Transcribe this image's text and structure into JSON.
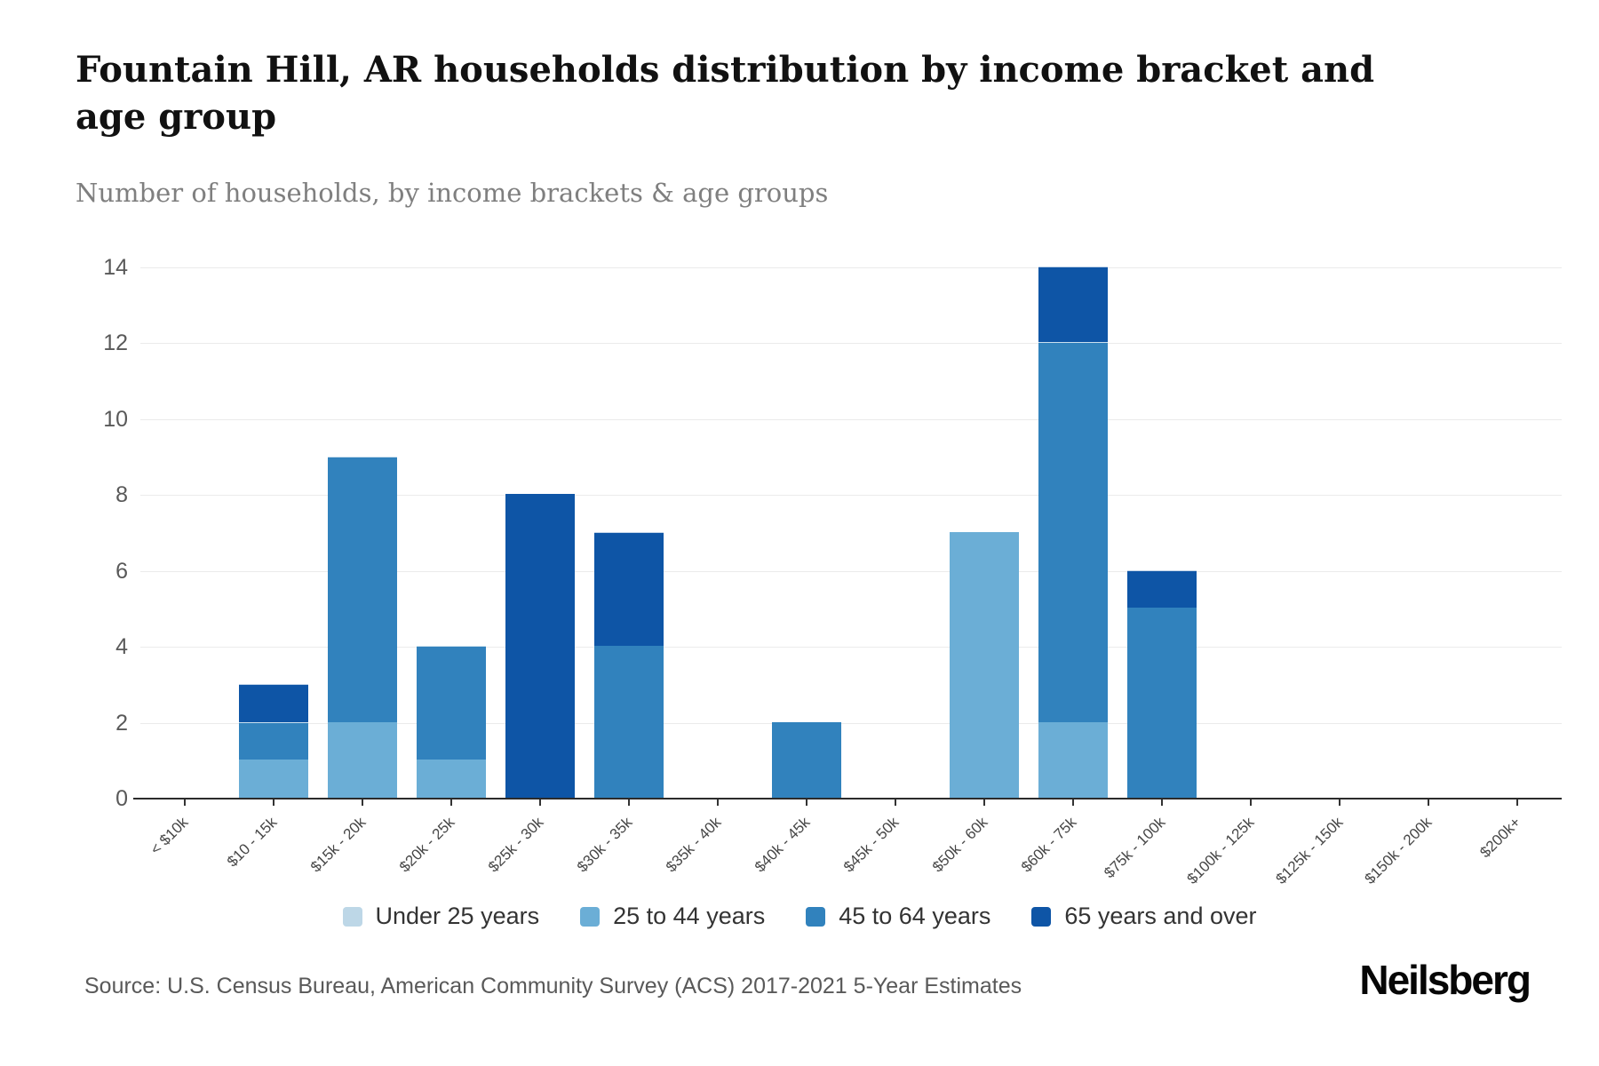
{
  "header": {
    "title": "Fountain Hill, AR households distribution by income bracket and age group",
    "subtitle": "Number of households, by income brackets & age groups"
  },
  "chart_data": {
    "type": "bar",
    "stacked": true,
    "title": "Fountain Hill, AR households distribution by income bracket and age group",
    "xlabel": "",
    "ylabel": "Number of households",
    "ylim": [
      0,
      14
    ],
    "yticks": [
      0,
      2,
      4,
      6,
      8,
      10,
      12,
      14
    ],
    "grid": "horizontal",
    "legend_position": "bottom",
    "categories": [
      "< $10k",
      "$10 - 15k",
      "$15k - 20k",
      "$20k - 25k",
      "$25k - 30k",
      "$30k - 35k",
      "$35k - 40k",
      "$40k - 45k",
      "$45k - 50k",
      "$50k - 60k",
      "$60k - 75k",
      "$75k - 100k",
      "$100k - 125k",
      "$125k - 150k",
      "$150k - 200k",
      "$200k+"
    ],
    "series": [
      {
        "name": "Under 25 years",
        "color": "#bdd7e7",
        "values": [
          0,
          0,
          0,
          0,
          0,
          0,
          0,
          0,
          0,
          0,
          0,
          0,
          0,
          0,
          0,
          0
        ]
      },
      {
        "name": "25 to 44 years",
        "color": "#6baed6",
        "values": [
          0,
          1,
          2,
          1,
          0,
          0,
          0,
          0,
          0,
          7,
          2,
          0,
          0,
          0,
          0,
          0
        ]
      },
      {
        "name": "45 to 64 years",
        "color": "#3182bd",
        "values": [
          0,
          1,
          7,
          3,
          0,
          4,
          0,
          2,
          0,
          0,
          10,
          5,
          0,
          0,
          0,
          0
        ]
      },
      {
        "name": "65 years and over",
        "color": "#0e55a6",
        "values": [
          0,
          1,
          0,
          0,
          8,
          3,
          0,
          0,
          0,
          0,
          2,
          1,
          0,
          0,
          0,
          0
        ]
      }
    ],
    "totals": [
      0,
      3,
      9,
      4,
      8,
      7,
      0,
      2,
      0,
      7,
      14,
      6,
      0,
      0,
      0,
      0
    ]
  },
  "footer": {
    "source": "Source: U.S. Census Bureau, American Community Survey (ACS) 2017-2021 5-Year Estimates",
    "brand": "Neilsberg"
  }
}
